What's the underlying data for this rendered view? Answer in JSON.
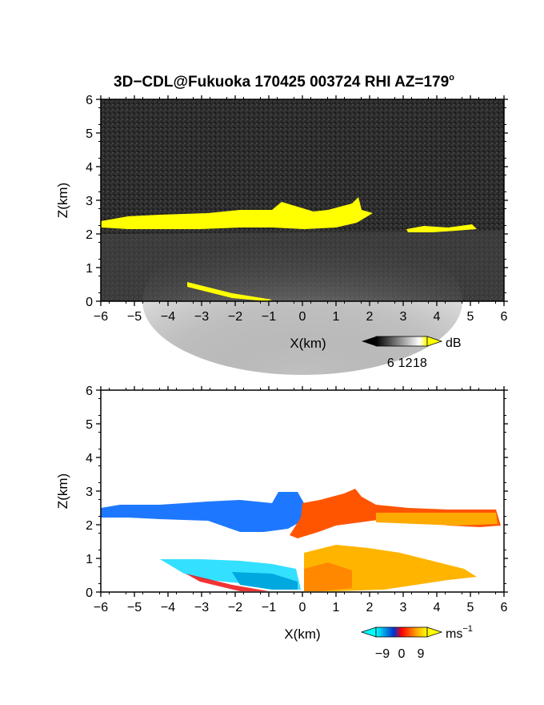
{
  "title": "3D−CDL@Fukuoka 170425 003724 RHI AZ=179",
  "title_degree": "o",
  "chart_data": [
    {
      "type": "heatmap",
      "panel": "reflectivity",
      "xlabel": "X(km)",
      "ylabel": "Z(km)",
      "xlim": [
        -6,
        6
      ],
      "ylim": [
        0,
        6
      ],
      "x_ticks": [
        "−6",
        "−5",
        "−4",
        "−3",
        "−2",
        "−1",
        "0",
        "1",
        "2",
        "3",
        "4",
        "5",
        "6"
      ],
      "y_ticks": [
        "0",
        "1",
        "2",
        "3",
        "4",
        "5",
        "6"
      ],
      "colorbar": {
        "unit": "dB",
        "ticks": [
          "6",
          "12",
          "18"
        ],
        "range": [
          0,
          21
        ],
        "colors": [
          "#000000",
          "#ffffff",
          "#ffff00"
        ]
      },
      "features": {
        "cloud_base_layer": {
          "color": "#ffff00",
          "x_range": [
            -6,
            2.3
          ],
          "z_range": [
            2.2,
            2.6
          ]
        },
        "cloud_top_bump": {
          "color": "#ffff00",
          "x_range": [
            -0.6,
            2.2
          ],
          "z_max": 3.0
        },
        "right_patches": {
          "color": "#ffff00",
          "x_range": [
            3.8,
            5.2
          ],
          "z": 2.2
        },
        "ground_clutter": {
          "color": "#ffff00",
          "x_range": [
            -3.4,
            -1.0
          ],
          "z_range": [
            0.05,
            0.55
          ]
        }
      },
      "background": "#2a2a2a"
    },
    {
      "type": "heatmap",
      "panel": "doppler_velocity",
      "xlabel": "X(km)",
      "ylabel": "Z(km)",
      "xlim": [
        -6,
        6
      ],
      "ylim": [
        0,
        6
      ],
      "x_ticks": [
        "−6",
        "−5",
        "−4",
        "−3",
        "−2",
        "−1",
        "0",
        "1",
        "2",
        "3",
        "4",
        "5",
        "6"
      ],
      "y_ticks": [
        "0",
        "1",
        "2",
        "3",
        "4",
        "5",
        "6"
      ],
      "colorbar": {
        "unit": "ms",
        "unit_sup": "−1",
        "ticks": [
          "−9",
          "0",
          "9"
        ],
        "range": [
          -12,
          12
        ],
        "colors": [
          "#00ffff",
          "#0033cc",
          "#ff0000",
          "#ffaa00",
          "#ffff00"
        ]
      },
      "features": {
        "negative_layer": {
          "color": "#1e78ff",
          "x_range": [
            -6,
            0
          ],
          "z_range": [
            2.0,
            2.6
          ]
        },
        "positive_layer": {
          "color": "#ff5500",
          "x_range": [
            0,
            6
          ],
          "z_range": [
            1.9,
            2.6
          ]
        },
        "lower_negative": {
          "color": "#33e0ff",
          "x_range": [
            -4.5,
            0
          ],
          "z_range": [
            0,
            1.1
          ]
        },
        "lower_positive": {
          "color": "#ffb400",
          "x_range": [
            0,
            5.5
          ],
          "z_range": [
            0,
            1.3
          ]
        }
      },
      "background": "#ffffff"
    }
  ]
}
